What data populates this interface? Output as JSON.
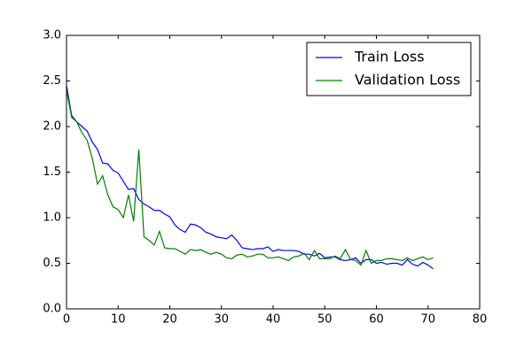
{
  "chart_data": {
    "type": "line",
    "x": [
      0,
      1,
      2,
      3,
      4,
      5,
      6,
      7,
      8,
      9,
      10,
      11,
      12,
      13,
      14,
      15,
      16,
      17,
      18,
      19,
      20,
      21,
      22,
      23,
      24,
      25,
      26,
      27,
      28,
      29,
      30,
      31,
      32,
      33,
      34,
      35,
      36,
      37,
      38,
      39,
      40,
      41,
      42,
      43,
      44,
      45,
      46,
      47,
      48,
      49,
      50,
      51,
      52,
      53,
      54,
      55,
      56,
      57,
      58,
      59,
      60,
      61,
      62,
      63,
      64,
      65,
      66,
      67,
      68,
      69,
      70,
      71
    ],
    "series": [
      {
        "name": "Train Loss",
        "color": "#0000ff",
        "values": [
          2.45,
          2.12,
          2.05,
          2.0,
          1.95,
          1.83,
          1.75,
          1.6,
          1.59,
          1.52,
          1.49,
          1.4,
          1.31,
          1.32,
          1.2,
          1.15,
          1.12,
          1.08,
          1.08,
          1.04,
          1.01,
          0.92,
          0.87,
          0.84,
          0.93,
          0.92,
          0.89,
          0.84,
          0.82,
          0.79,
          0.78,
          0.77,
          0.81,
          0.75,
          0.67,
          0.66,
          0.65,
          0.66,
          0.66,
          0.68,
          0.63,
          0.65,
          0.64,
          0.64,
          0.64,
          0.63,
          0.6,
          0.6,
          0.58,
          0.61,
          0.56,
          0.57,
          0.57,
          0.54,
          0.53,
          0.54,
          0.56,
          0.5,
          0.54,
          0.54,
          0.5,
          0.51,
          0.49,
          0.5,
          0.5,
          0.48,
          0.54,
          0.49,
          0.47,
          0.51,
          0.48,
          0.44
        ]
      },
      {
        "name": "Validation Loss",
        "color": "#008000",
        "values": [
          2.4,
          2.1,
          2.05,
          1.93,
          1.85,
          1.65,
          1.37,
          1.46,
          1.25,
          1.12,
          1.09,
          1.0,
          1.25,
          0.96,
          1.75,
          0.79,
          0.75,
          0.7,
          0.85,
          0.67,
          0.66,
          0.66,
          0.63,
          0.6,
          0.65,
          0.64,
          0.65,
          0.62,
          0.6,
          0.62,
          0.6,
          0.56,
          0.55,
          0.59,
          0.6,
          0.57,
          0.58,
          0.6,
          0.6,
          0.56,
          0.56,
          0.57,
          0.55,
          0.53,
          0.57,
          0.58,
          0.61,
          0.54,
          0.64,
          0.55,
          0.55,
          0.55,
          0.58,
          0.55,
          0.65,
          0.54,
          0.53,
          0.48,
          0.64,
          0.5,
          0.53,
          0.53,
          0.55,
          0.55,
          0.54,
          0.53,
          0.56,
          0.53,
          0.55,
          0.57,
          0.54,
          0.56
        ]
      }
    ],
    "xlim": [
      0,
      80
    ],
    "xticks": [
      0,
      10,
      20,
      30,
      40,
      50,
      60,
      70,
      80
    ],
    "ylim": [
      0,
      3
    ],
    "yticks": [
      {
        "value": 0,
        "label": "0.0"
      },
      0.5,
      {
        "value": 1,
        "label": "1.0"
      },
      1.5,
      {
        "value": 2,
        "label": "2.0"
      },
      2.5,
      {
        "value": 3,
        "label": "3.0"
      }
    ],
    "legend": "upper right",
    "grid": false
  }
}
